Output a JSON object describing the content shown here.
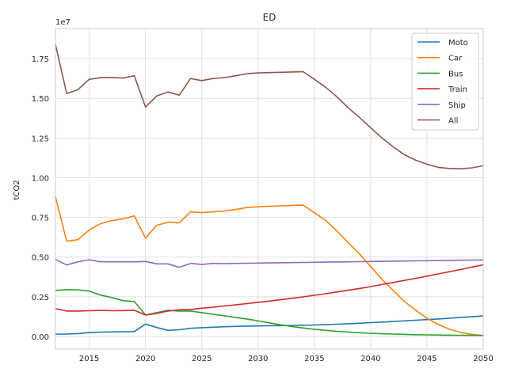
{
  "chart_data": {
    "type": "line",
    "title": "ED",
    "xlabel": "",
    "ylabel": "tCO2",
    "y_offset_label": "1e7",
    "xlim": [
      2012,
      2050
    ],
    "ylim": [
      -800000,
      19400000
    ],
    "x_ticks": [
      2015,
      2020,
      2025,
      2030,
      2035,
      2040,
      2045,
      2050
    ],
    "y_ticks": [
      0,
      2500000,
      5000000,
      7500000,
      10000000,
      12500000,
      15000000,
      17500000
    ],
    "y_tick_labels": [
      "0.00",
      "0.25",
      "0.50",
      "0.75",
      "1.00",
      "1.25",
      "1.50",
      "1.75"
    ],
    "grid": true,
    "legend_position": "top-right",
    "x": [
      2012,
      2013,
      2014,
      2015,
      2016,
      2017,
      2018,
      2019,
      2020,
      2021,
      2022,
      2023,
      2024,
      2025,
      2026,
      2027,
      2028,
      2029,
      2030,
      2031,
      2032,
      2033,
      2034,
      2035,
      2036,
      2037,
      2038,
      2039,
      2040,
      2041,
      2042,
      2043,
      2044,
      2045,
      2046,
      2047,
      2048,
      2049,
      2050
    ],
    "series": [
      {
        "name": "Moto",
        "color": "#1f77b4",
        "values": [
          150000,
          150000,
          180000,
          240000,
          270000,
          280000,
          290000,
          300000,
          780000,
          560000,
          380000,
          420000,
          510000,
          550000,
          580000,
          610000,
          630000,
          650000,
          660000,
          670000,
          680000,
          690000,
          700000,
          720000,
          740000,
          770000,
          800000,
          830000,
          870000,
          900000,
          940000,
          980000,
          1020000,
          1060000,
          1100000,
          1150000,
          1200000,
          1240000,
          1290000
        ]
      },
      {
        "name": "Car",
        "color": "#ff7f0e",
        "values": [
          8800000,
          6000000,
          6100000,
          6700000,
          7100000,
          7300000,
          7400000,
          7600000,
          6200000,
          7000000,
          7200000,
          7150000,
          7850000,
          7800000,
          7850000,
          7900000,
          8000000,
          8120000,
          8170000,
          8200000,
          8230000,
          8260000,
          8280000,
          7800000,
          7300000,
          6650000,
          5900000,
          5200000,
          4400000,
          3600000,
          2900000,
          2200000,
          1650000,
          1150000,
          750000,
          450000,
          250000,
          130000,
          60000
        ]
      },
      {
        "name": "Bus",
        "color": "#2ca02c",
        "values": [
          2900000,
          2950000,
          2930000,
          2850000,
          2600000,
          2450000,
          2250000,
          2200000,
          1350000,
          1500000,
          1650000,
          1600000,
          1600000,
          1500000,
          1400000,
          1300000,
          1200000,
          1100000,
          980000,
          850000,
          730000,
          620000,
          530000,
          450000,
          380000,
          320000,
          270000,
          230000,
          200000,
          170000,
          150000,
          130000,
          110000,
          100000,
          90000,
          80000,
          75000,
          70000,
          65000
        ]
      },
      {
        "name": "Train",
        "color": "#d62728",
        "values": [
          1750000,
          1600000,
          1600000,
          1620000,
          1640000,
          1620000,
          1630000,
          1650000,
          1350000,
          1450000,
          1600000,
          1680000,
          1700000,
          1780000,
          1840000,
          1920000,
          1990000,
          2070000,
          2150000,
          2230000,
          2310000,
          2400000,
          2490000,
          2590000,
          2690000,
          2800000,
          2910000,
          3020000,
          3140000,
          3270000,
          3400000,
          3530000,
          3660000,
          3800000,
          3940000,
          4080000,
          4220000,
          4370000,
          4510000
        ]
      },
      {
        "name": "Ship",
        "color": "#9467bd",
        "values": [
          4850000,
          4500000,
          4700000,
          4830000,
          4700000,
          4700000,
          4700000,
          4700000,
          4720000,
          4570000,
          4570000,
          4350000,
          4600000,
          4530000,
          4600000,
          4580000,
          4600000,
          4610000,
          4620000,
          4630000,
          4640000,
          4650000,
          4660000,
          4670000,
          4680000,
          4690000,
          4700000,
          4710000,
          4720000,
          4730000,
          4740000,
          4750000,
          4760000,
          4770000,
          4780000,
          4790000,
          4800000,
          4810000,
          4820000
        ]
      },
      {
        "name": "All",
        "color": "#8c564b",
        "values": [
          18400000,
          15300000,
          15550000,
          16200000,
          16300000,
          16320000,
          16280000,
          16420000,
          14450000,
          15150000,
          15400000,
          15200000,
          16250000,
          16120000,
          16250000,
          16310000,
          16420000,
          16550000,
          16600000,
          16620000,
          16640000,
          16660000,
          16680000,
          16200000,
          15700000,
          15100000,
          14400000,
          13800000,
          13150000,
          12500000,
          11950000,
          11450000,
          11100000,
          10850000,
          10650000,
          10580000,
          10560000,
          10620000,
          10750000
        ]
      }
    ]
  }
}
